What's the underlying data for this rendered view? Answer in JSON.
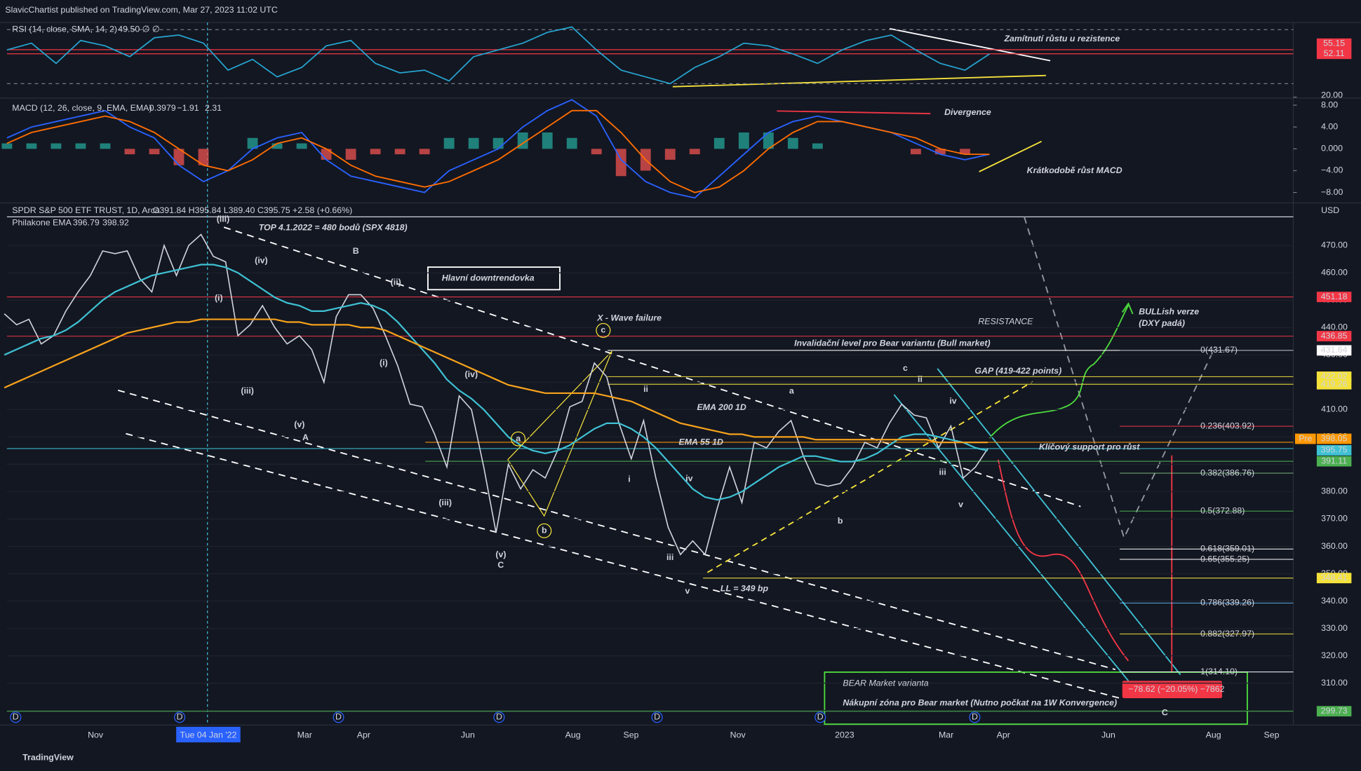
{
  "header": {
    "publisher": "SlavicChartist published on TradingView.com, Mar 27, 2023 11:02 UTC",
    "logo": "TradingView",
    "currency": "USD",
    "dividend_marker": "D"
  },
  "chart_data": [
    {
      "type": "line",
      "title": "RSI (14, close, SMA, 14, 2)",
      "readout": "49.50  ∅  ∅",
      "color": "#26a6d1",
      "values": [
        55,
        60,
        45,
        62,
        58,
        50,
        64,
        66,
        60,
        40,
        48,
        35,
        42,
        58,
        62,
        45,
        38,
        40,
        32,
        50,
        55,
        60,
        68,
        72,
        55,
        40,
        35,
        30,
        42,
        50,
        60,
        58,
        52,
        45,
        55,
        62,
        66,
        55,
        45,
        40,
        52
      ],
      "ylim": [
        20,
        74
      ],
      "yticks": [
        {
          "value": 20,
          "label": "20.00"
        }
      ],
      "guide_lines": [
        30,
        70
      ],
      "hlines": [
        {
          "value": 55.15,
          "color": "#f23645"
        },
        {
          "value": 52.11,
          "color": "#f23645"
        }
      ]
    },
    {
      "type": "macd",
      "title": "MACD (12, 26, close, 9, EMA, EMA)",
      "readouts": [
        {
          "text": "0.3979",
          "color": "#2962ff"
        },
        {
          "text": "−1.91",
          "color": "#2962ff"
        },
        {
          "text": "2.31",
          "color": "#ff6d00"
        }
      ],
      "series": [
        {
          "color": "#2962ff",
          "values": [
            2,
            4,
            5,
            6,
            7,
            4,
            2,
            -3,
            -6,
            -4,
            0,
            2,
            3,
            -2,
            -5,
            -6,
            -7,
            -8,
            -4,
            -2,
            0,
            4,
            7,
            9,
            6,
            -2,
            -6,
            -8,
            -9,
            -5,
            -1,
            3,
            5,
            6,
            5,
            4,
            3,
            1,
            -1,
            -2,
            -1
          ]
        },
        {
          "color": "#ff6d00",
          "values": [
            1,
            3,
            4,
            5,
            6,
            5,
            3,
            0,
            -3,
            -4,
            -2,
            1,
            2,
            0,
            -3,
            -5,
            -6,
            -7,
            -6,
            -4,
            -2,
            1,
            4,
            7,
            7,
            3,
            -2,
            -6,
            -8,
            -7,
            -4,
            0,
            3,
            5,
            5,
            4,
            3,
            2,
            0,
            -1,
            -1
          ]
        }
      ],
      "histogram": [
        1,
        1,
        1,
        1,
        1,
        -1,
        -1,
        -3,
        -3,
        0,
        2,
        1,
        1,
        -2,
        -2,
        -1,
        -1,
        -1,
        2,
        2,
        2,
        3,
        3,
        2,
        -1,
        -5,
        -4,
        -2,
        -1,
        2,
        3,
        3,
        2,
        1,
        0,
        0,
        0,
        -1,
        -1,
        -1,
        0
      ],
      "ylim": [
        -9.6,
        9
      ],
      "yticks": [
        {
          "value": 8,
          "label": "8.00"
        },
        {
          "value": 4,
          "label": "4.00"
        },
        {
          "value": 0,
          "label": "0.000"
        },
        {
          "value": -4,
          "label": "−4.00"
        },
        {
          "value": -8,
          "label": "−8.00"
        }
      ]
    },
    {
      "type": "price",
      "title": "SPDR S&P 500 ETF TRUST, 1D, Arca",
      "ohlc": "O391.84  H395.84  L389.40  C395.75  +2.58 (+0.66%)",
      "indicator": "Philakone EMA",
      "indicator_values": [
        "396.79",
        "398.92"
      ],
      "series": [
        {
          "color": "#d1d4dc",
          "values": [
            445,
            441,
            443,
            434,
            437,
            446,
            453,
            459,
            468,
            467,
            468,
            458,
            453,
            470,
            459,
            470,
            474,
            466,
            464,
            437,
            441,
            448,
            440,
            434,
            437,
            432,
            420,
            444,
            452,
            452,
            447,
            437,
            426,
            412,
            411,
            401,
            389,
            415,
            410,
            389,
            365,
            390,
            381,
            388,
            385,
            395,
            411,
            413,
            427,
            422,
            405,
            392,
            406,
            385,
            367,
            357,
            362,
            357,
            374,
            389,
            376,
            398,
            396,
            402,
            406,
            393,
            383,
            382,
            383,
            389,
            398,
            396,
            405,
            412,
            408,
            407,
            396,
            404,
            385,
            389,
            395.75
          ]
        },
        {
          "color": "#3ec1d3",
          "values": [
            430,
            432,
            434,
            436,
            437,
            439,
            442,
            446,
            450,
            453,
            455,
            457,
            459,
            460,
            461,
            462,
            463,
            463,
            462,
            460,
            457,
            454,
            451,
            449,
            448,
            446,
            446,
            447,
            448,
            449,
            448,
            446,
            442,
            437,
            432,
            427,
            421,
            417,
            414,
            410,
            405,
            400,
            397,
            395,
            394,
            395,
            397,
            400,
            403,
            405,
            405,
            403,
            400,
            396,
            391,
            386,
            381,
            378,
            377,
            378,
            380,
            383,
            386,
            389,
            391,
            393,
            393,
            392,
            391,
            391,
            392,
            394,
            397,
            400,
            401,
            401,
            400,
            399,
            398,
            396,
            395
          ]
        },
        {
          "color": "#f7a21b",
          "values": [
            418,
            420,
            422,
            424,
            426,
            428,
            430,
            432,
            434,
            436,
            438,
            439,
            440,
            441,
            442,
            442,
            443,
            443,
            443,
            443,
            443,
            443,
            443,
            442,
            442,
            441,
            441,
            441,
            441,
            440,
            440,
            439,
            437,
            435,
            433,
            431,
            429,
            427,
            425,
            423,
            421,
            419,
            418,
            417,
            416,
            416,
            416,
            416,
            416,
            415,
            414,
            413,
            411,
            409,
            407,
            405,
            404,
            403,
            402,
            401,
            401,
            400,
            400,
            400,
            400,
            400,
            399,
            399,
            399,
            399,
            399,
            399,
            399,
            399,
            399,
            399,
            398,
            398,
            398,
            398,
            398
          ]
        }
      ],
      "ylim": [
        295,
        481.1
      ],
      "yticks": [
        {
          "value": 300,
          "label": "300.00"
        },
        {
          "value": 310,
          "label": "310.00"
        },
        {
          "value": 320,
          "label": "320.00"
        },
        {
          "value": 330,
          "label": "330.00"
        },
        {
          "value": 340,
          "label": "340.00"
        },
        {
          "value": 350,
          "label": "350.00"
        },
        {
          "value": 360,
          "label": "360.00"
        },
        {
          "value": 370,
          "label": "370.00"
        },
        {
          "value": 380,
          "label": "380.00"
        },
        {
          "value": 390,
          "label": "390.00"
        },
        {
          "value": 400,
          "label": "400.00"
        },
        {
          "value": 410,
          "label": "410.00"
        },
        {
          "value": 420,
          "label": "420.00"
        },
        {
          "value": 430,
          "label": "430.00"
        },
        {
          "value": 440,
          "label": "440.00"
        },
        {
          "value": 450,
          "label": "450.00"
        },
        {
          "value": 460,
          "label": "460.00"
        },
        {
          "value": 470,
          "label": "470.00"
        }
      ],
      "price_levels": [
        {
          "value": 451.18,
          "color": "#f23645"
        },
        {
          "value": 436.85,
          "color": "#f23645"
        },
        {
          "value": 431.64,
          "color": "#ffffff"
        },
        {
          "value": 422.02,
          "color": "#f5e23b"
        },
        {
          "value": 419.26,
          "color": "#f5e23b"
        },
        {
          "tag": "Pre",
          "value": 398.05,
          "color": "#ff9800"
        },
        {
          "value": 395.75,
          "color": "#3ec1d3"
        },
        {
          "value": 391.11,
          "color": "#4caf50"
        },
        {
          "value": 348.41,
          "color": "#f5e23b"
        },
        {
          "value": 299.73,
          "color": "#4caf50"
        }
      ],
      "fib_levels": [
        {
          "label": "0(431.67)",
          "value": 431.67,
          "color": "#787b86"
        },
        {
          "label": "0.236(403.92)",
          "value": 403.92,
          "color": "#f23645"
        },
        {
          "label": "0.382(386.76)",
          "value": 386.76,
          "color": "#81c784"
        },
        {
          "label": "0.5(372.88)",
          "value": 372.88,
          "color": "#4caf50"
        },
        {
          "label": "0.618(359.01)",
          "value": 359.01,
          "color": "#ffffff"
        },
        {
          "label": "0.65(355.25)",
          "value": 355.25,
          "color": "#ffffff"
        },
        {
          "label": "0.786(339.26)",
          "value": 339.26,
          "color": "#64b5f6"
        },
        {
          "label": "0.882(327.97)",
          "value": 327.97,
          "color": "#f5e23b"
        },
        {
          "label": "1(314.10)",
          "value": 314.1,
          "color": "#ffffff"
        }
      ],
      "x_labels": [
        "Nov",
        "Tue 04 Jan '22",
        "Mar",
        "Apr",
        "Jun",
        "Aug",
        "Sep",
        "Nov",
        "2023",
        "Mar",
        "Apr",
        "Jun",
        "Aug",
        "Sep"
      ],
      "annotations": [
        {
          "text": "TOP 4.1.2022 = 480 bodů (SPX 4818)",
          "color": "#ffffff"
        },
        {
          "text": "Hlavní downtrendovka",
          "color": "#ffffff"
        },
        {
          "text": "X - Wave failure",
          "color": "#f5e23b"
        },
        {
          "text": "RESISTANCE",
          "color": "#f23645"
        },
        {
          "text": "Invalidační level pro Bear variantu (Bull market)",
          "color": "#ffffff"
        },
        {
          "text": "GAP (419-422 points)",
          "color": "#f5e23b"
        },
        {
          "text": "BULLish verze",
          "color": "#4cdb3c"
        },
        {
          "text": "(DXY padá)",
          "color": "#4cdb3c"
        },
        {
          "text": "EMA 200 1D",
          "color": "#f7a21b"
        },
        {
          "text": "EMA 55 1D",
          "color": "#3ec1d3"
        },
        {
          "text": "Klíčový support pro růst",
          "color": "#4cdb3c"
        },
        {
          "text": "LL = 349 bp",
          "color": "#f5e23b"
        },
        {
          "text": "BEAR Market varianta",
          "color": "#f23645"
        },
        {
          "text": "Nákupní zóna pro Bear market (Nutno počkat na 1W Konvergence)",
          "color": "#4cdb3c"
        },
        {
          "text": "Zamítnutí růstu u rezistence",
          "color": "#f5e23b"
        },
        {
          "text": "Divergence",
          "color": "#f23645"
        },
        {
          "text": "Krátkodobě růst MACD",
          "color": "#f5e23b"
        },
        {
          "text": "−78.62 (−20.05%) −7862",
          "color": "#ffffff"
        }
      ],
      "wave_labels": [
        {
          "text": "(iii)",
          "color": "#f5e23b"
        },
        {
          "text": "(iv)",
          "color": "#f5e23b"
        },
        {
          "text": "B",
          "color": "#f5e23b"
        },
        {
          "text": "(ii)",
          "color": "#f5e23b"
        },
        {
          "text": "(i)",
          "color": "#f5e23b"
        },
        {
          "text": "(iii)",
          "color": "#f5e23b"
        },
        {
          "text": "(v)",
          "color": "#f5e23b"
        },
        {
          "text": "A",
          "color": "#f5e23b"
        },
        {
          "text": "(i)",
          "color": "#f5e23b"
        },
        {
          "text": "(iv)",
          "color": "#f5e23b"
        },
        {
          "text": "(iii)",
          "color": "#f5e23b"
        },
        {
          "text": "(v)",
          "color": "#f5e23b"
        },
        {
          "text": "C",
          "color": "#f5e23b"
        },
        {
          "text": "a",
          "color": "#f5e23b"
        },
        {
          "text": "b",
          "color": "#f5e23b"
        },
        {
          "text": "c",
          "color": "#f5e23b"
        },
        {
          "text": "ii",
          "color": "#f5e23b"
        },
        {
          "text": "i",
          "color": "#f5e23b"
        },
        {
          "text": "iv",
          "color": "#f5e23b"
        },
        {
          "text": "iii",
          "color": "#f5e23b"
        },
        {
          "text": "v",
          "color": "#f5e23b"
        },
        {
          "text": "a",
          "color": "#4caf50"
        },
        {
          "text": "b",
          "color": "#4caf50"
        },
        {
          "text": "c",
          "color": "#4caf50"
        },
        {
          "text": "ii",
          "color": "#f5e23b"
        },
        {
          "text": "iv",
          "color": "#f5e23b"
        },
        {
          "text": "iii",
          "color": "#f5e23b"
        },
        {
          "text": "v",
          "color": "#f5e23b"
        },
        {
          "text": "C",
          "color": "#f5e23b"
        }
      ]
    }
  ]
}
